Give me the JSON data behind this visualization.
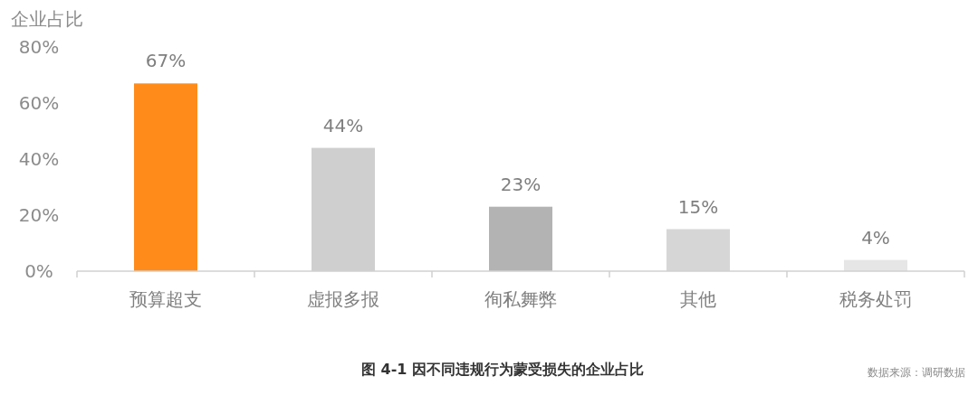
{
  "chart_data": {
    "type": "bar",
    "title": "图 4-1 因不同违规行为蒙受损失的企业占比",
    "ylabel": "企业占比",
    "categories": [
      "预算超支",
      "虚报多报",
      "徇私舞弊",
      "其他",
      "税务处罚"
    ],
    "values": [
      67,
      44,
      23,
      15,
      4
    ],
    "colors": [
      "#ff8c1a",
      "#cfcfcf",
      "#b3b3b3",
      "#d6d6d6",
      "#e6e6e6"
    ],
    "value_labels": [
      "67%",
      "44%",
      "23%",
      "15%",
      "4%"
    ],
    "ylim": [
      0,
      80
    ],
    "yticks": [
      {
        "value": 0,
        "label": "0%"
      },
      {
        "value": 20,
        "label": "20%"
      },
      {
        "value": 40,
        "label": "40%"
      },
      {
        "value": 60,
        "label": "60%"
      },
      {
        "value": 80,
        "label": "80%"
      }
    ],
    "annotations": [
      "数据来源：调研数据"
    ]
  }
}
